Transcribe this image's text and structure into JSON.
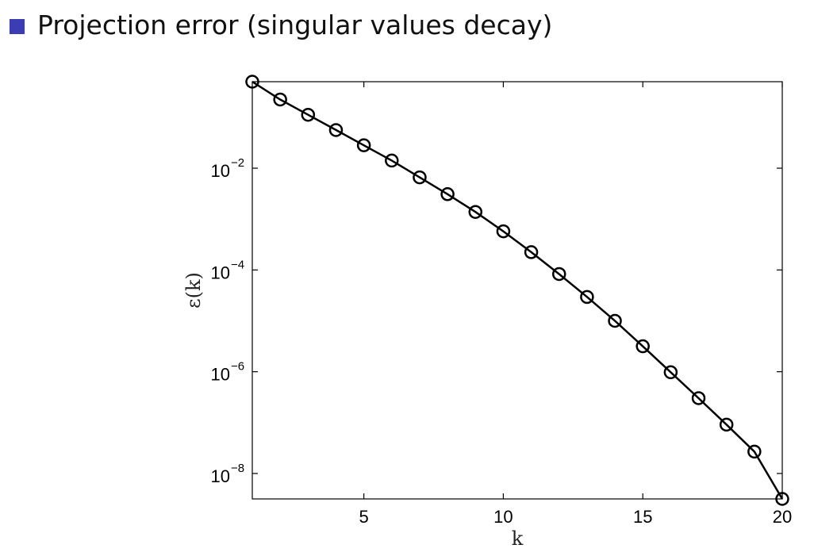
{
  "slide": {
    "bullet_text": "Projection error (singular values decay)",
    "bullet_color": "#3c3cb4"
  },
  "chart_data": {
    "type": "line",
    "title": "",
    "xlabel": "k",
    "ylabel": "ε(k)",
    "xlim": [
      1,
      20
    ],
    "ylim_log10": [
      -8.5,
      -0.3
    ],
    "yscale": "log",
    "xticks": [
      5,
      10,
      15,
      20
    ],
    "yticks": [
      {
        "base": "10",
        "exp": "−2",
        "log10": -2
      },
      {
        "base": "10",
        "exp": "−4",
        "log10": -4
      },
      {
        "base": "10",
        "exp": "−6",
        "log10": -6
      },
      {
        "base": "10",
        "exp": "−8",
        "log10": -8
      }
    ],
    "grid": false,
    "marker": "circle",
    "line_color": "#000000",
    "series": [
      {
        "x": [
          1,
          2,
          3,
          4,
          5,
          6,
          7,
          8,
          9,
          10,
          11,
          12,
          13,
          14,
          15,
          16,
          17,
          18,
          19,
          20
        ],
        "y_log10": [
          -0.3,
          -0.65,
          -0.95,
          -1.25,
          -1.55,
          -1.85,
          -2.18,
          -2.51,
          -2.86,
          -3.24,
          -3.65,
          -4.08,
          -4.53,
          -5.0,
          -5.5,
          -6.01,
          -6.52,
          -7.04,
          -7.57,
          -8.5
        ]
      }
    ]
  }
}
